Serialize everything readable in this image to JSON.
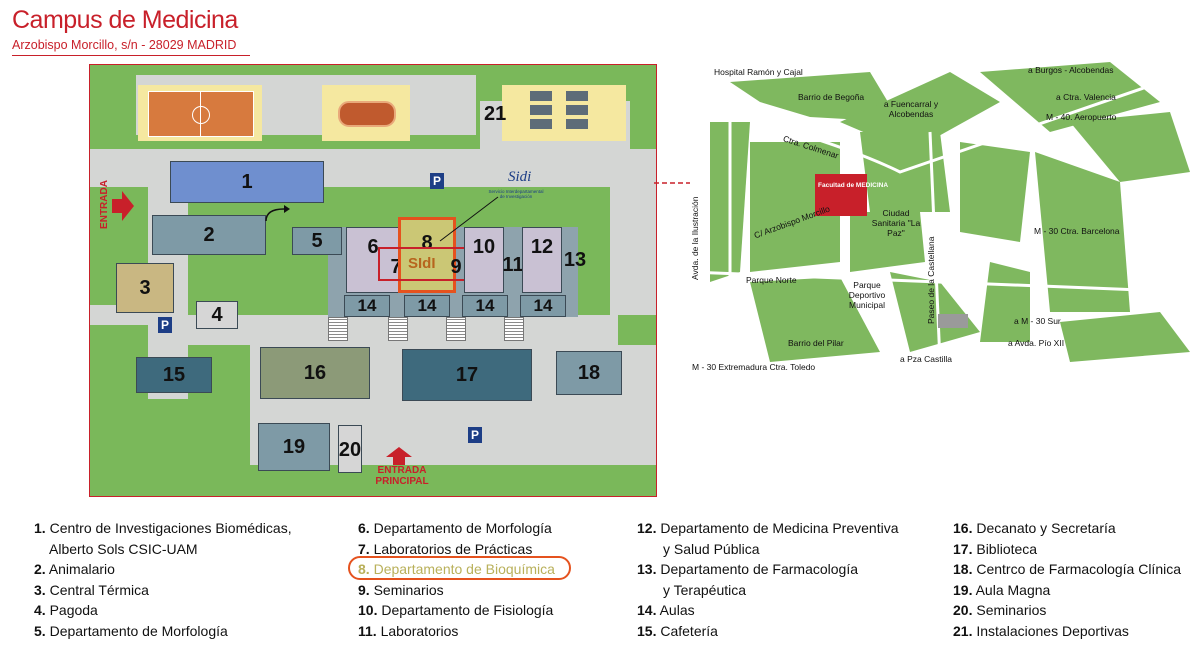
{
  "header": {
    "title": "Campus de Medicina",
    "subtitle": "Arzobispo Morcillo, s/n - 28029 MADRID"
  },
  "campus": {
    "buildings": [
      "1",
      "2",
      "3",
      "4",
      "5",
      "6",
      "7",
      "8",
      "9",
      "10",
      "11",
      "12",
      "13",
      "14",
      "15",
      "16",
      "17",
      "18",
      "19",
      "20",
      "21"
    ],
    "parking_label": "P",
    "entrance_label": "ENTRADA",
    "main_entrance_label_1": "ENTRADA",
    "main_entrance_label_2": "PRINCIPAL",
    "sidi_logo": "Sidi",
    "sidi_caption": "Servicio Interdepartamental de Investigación",
    "sidi_badge": "SIdI",
    "colors": {
      "accent": "#c8202a",
      "highlight": "#e5521e",
      "parking": "#1d3e86"
    }
  },
  "location_map": {
    "labels": {
      "hospital": "Hospital Ramón y Cajal",
      "begona": "Barrio de Begoña",
      "fuencarral": "a Fuencarral y Alcobendas",
      "burgos": "a Burgos - Alcobendas",
      "valencia": "a Ctra. Valencia",
      "m40": "M - 40. Aeropuerto",
      "colmenar": "Ctra. Colmenar",
      "facultad": "Facultad de MEDICINA",
      "arzobispo": "C/ Arzobispo Morcillo",
      "ciudad_sanitaria": "Ciudad Sanitaria \"La Paz\"",
      "barcelona": "M - 30 Ctra. Barcelona",
      "ilustracion": "Avda. de la Ilustración",
      "castellana": "Paseo de la Castellana",
      "parque_norte": "Parque Norte",
      "parque_deportivo": "Parque Deportivo Municipal",
      "m30sur": "a M - 30 Sur",
      "pio": "a Avda. Pío XII",
      "pilar": "Barrio del Pilar",
      "castilla": "a Pza Castilla",
      "extremadura": "M - 30 Extremadura Ctra. Toledo"
    }
  },
  "legend": {
    "columns": [
      [
        {
          "num": "1.",
          "text": "Centro de Investigaciones Biomédicas,"
        },
        {
          "num": "",
          "text": "Alberto Sols CSIC-UAM"
        },
        {
          "num": "2.",
          "text": "Animalario"
        },
        {
          "num": "3.",
          "text": "Central Térmica"
        },
        {
          "num": "4.",
          "text": "Pagoda"
        },
        {
          "num": "5.",
          "text": "Departamento de Morfología"
        }
      ],
      [
        {
          "num": "6.",
          "text": "Departamento de Morfología"
        },
        {
          "num": "7.",
          "text": "Laboratorios de Prácticas"
        },
        {
          "num": "8.",
          "text": "Departamento de Bioquímica"
        },
        {
          "num": "9.",
          "text": "Seminarios"
        },
        {
          "num": "10.",
          "text": "Departamento de Fisiología"
        },
        {
          "num": "11.",
          "text": "Laboratorios"
        }
      ],
      [
        {
          "num": "12.",
          "text": "Departamento de Medicina Preventiva"
        },
        {
          "num": "",
          "text": "y Salud Pública"
        },
        {
          "num": "13.",
          "text": "Departamento de Farmacología"
        },
        {
          "num": "",
          "text": "y Terapéutica"
        },
        {
          "num": "14.",
          "text": "Aulas"
        },
        {
          "num": "15.",
          "text": "Cafetería"
        }
      ],
      [
        {
          "num": "16.",
          "text": "Decanato y Secretaría"
        },
        {
          "num": "17.",
          "text": "Biblioteca"
        },
        {
          "num": "18.",
          "text": "Centrco de Farmacología Clínica"
        },
        {
          "num": "19.",
          "text": "Aula Magna"
        },
        {
          "num": "20.",
          "text": "Seminarios"
        },
        {
          "num": "21.",
          "text": "Instalaciones Deportivas"
        }
      ]
    ]
  }
}
